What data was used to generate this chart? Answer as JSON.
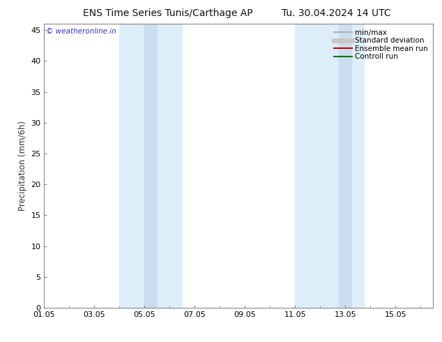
{
  "title_left": "ENS Time Series Tunis/Carthage AP",
  "title_right": "Tu. 30.04.2024 14 UTC",
  "ylabel": "Precipitation (mm/6h)",
  "ylim": [
    0,
    46
  ],
  "yticks": [
    0,
    5,
    10,
    15,
    20,
    25,
    30,
    35,
    40,
    45
  ],
  "xlim_start": 0.0,
  "xlim_end": 15.5,
  "xtick_positions": [
    0,
    2,
    4,
    6,
    8,
    10,
    12,
    14
  ],
  "xtick_labels": [
    "01.05",
    "03.05",
    "05.05",
    "07.05",
    "09.05",
    "11.05",
    "13.05",
    "15.05"
  ],
  "shaded_bands": [
    {
      "x_start": 3.25,
      "x_end": 4.0,
      "color": "#dce8f5"
    },
    {
      "x_start": 4.0,
      "x_end": 5.75,
      "color": "#dce8f5"
    },
    {
      "x_start": 10.5,
      "x_end": 11.25,
      "color": "#dce8f5"
    },
    {
      "x_start": 11.25,
      "x_end": 13.0,
      "color": "#dce8f5"
    }
  ],
  "shade_color_light": "#e8f1fa",
  "shade_color_dark": "#ccddf0",
  "background_color": "#ffffff",
  "copyright_text": "© weatheronline.in",
  "copyright_color": "#3333cc",
  "legend_items": [
    {
      "label": "min/max",
      "color": "#b0b0b0",
      "lw": 1.5
    },
    {
      "label": "Standard deviation",
      "color": "#c8c8c8",
      "lw": 5
    },
    {
      "label": "Ensemble mean run",
      "color": "#cc0000",
      "lw": 1.5
    },
    {
      "label": "Controll run",
      "color": "#007700",
      "lw": 1.5
    }
  ],
  "title_fontsize": 10,
  "tick_label_fontsize": 8,
  "ylabel_fontsize": 8.5,
  "legend_fontsize": 7.5,
  "copyright_fontsize": 7.5
}
